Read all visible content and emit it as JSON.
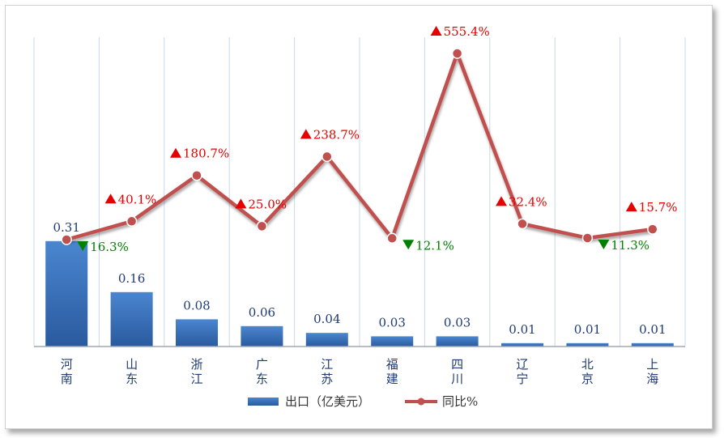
{
  "chart_data": {
    "type": "bar",
    "categories": [
      "河南",
      "山东",
      "浙江",
      "广东",
      "江苏",
      "福建",
      "四川",
      "辽宁",
      "北京",
      "上海"
    ],
    "series": [
      {
        "name": "出口（亿美元）",
        "type": "bar",
        "values": [
          0.31,
          0.16,
          0.08,
          0.06,
          0.04,
          0.03,
          0.03,
          0.01,
          0.01,
          0.01
        ],
        "labels": [
          "0.31",
          "0.16",
          "0.08",
          "0.06",
          "0.04",
          "0.03",
          "0.03",
          "0.01",
          "0.01",
          "0.01"
        ],
        "color": "#3a74c0"
      },
      {
        "name": "同比%",
        "type": "line",
        "values": [
          -16.3,
          40.1,
          180.7,
          25.0,
          238.7,
          -12.1,
          555.4,
          32.4,
          -11.3,
          15.7
        ],
        "labels": [
          "16.3%",
          "40.1%",
          "180.7%",
          "25.0%",
          "238.7%",
          "12.1%",
          "555.4%",
          "32.4%",
          "11.3%",
          "15.7%"
        ],
        "color": "#c0504d"
      }
    ],
    "up_color": "#e60000",
    "down_color": "#008000",
    "legend_position": "bottom",
    "grid": "vertical"
  }
}
